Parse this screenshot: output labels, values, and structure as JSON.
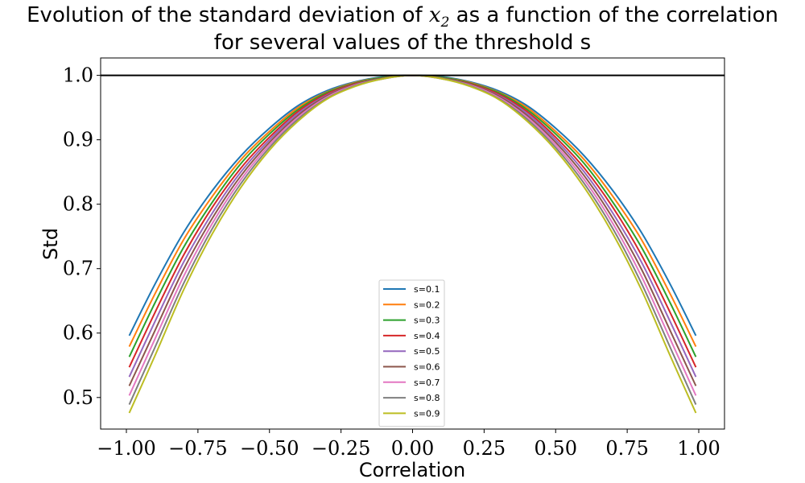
{
  "title": {
    "line1_prefix": "Evolution of the standard deviation of ",
    "line1_var": "x",
    "line1_sub": "2",
    "line1_suffix": " as a function of the correlation",
    "line2": "for several values of the threshold s"
  },
  "chart_data": {
    "type": "line",
    "xlabel": "Correlation",
    "ylabel": "Std",
    "xlim": [
      -1.09,
      1.09
    ],
    "ylim": [
      0.451,
      1.027
    ],
    "x_ticks": [
      -1.0,
      -0.75,
      -0.5,
      -0.25,
      0.0,
      0.25,
      0.5,
      0.75,
      1.0
    ],
    "x_tick_labels": [
      "−1.00",
      "−0.75",
      "−0.50",
      "−0.25",
      "0.00",
      "0.25",
      "0.50",
      "0.75",
      "1.00"
    ],
    "y_ticks": [
      0.5,
      0.6,
      0.7,
      0.8,
      0.9,
      1.0
    ],
    "y_tick_labels": [
      "0.5",
      "0.6",
      "0.7",
      "0.8",
      "0.9",
      "1.0"
    ],
    "hline": {
      "y": 1.0,
      "color": "#000000"
    },
    "legend_position": "lower-center",
    "x": [
      -0.99,
      -0.9,
      -0.8,
      -0.7,
      -0.6,
      -0.5,
      -0.4,
      -0.3,
      -0.2,
      -0.1,
      0.0,
      0.1,
      0.2,
      0.3,
      0.4,
      0.5,
      0.6,
      0.7,
      0.8,
      0.9,
      0.99
    ],
    "series": [
      {
        "name": "s=0.1",
        "color": "#1f77b4",
        "values": [
          0.596,
          0.676,
          0.756,
          0.821,
          0.875,
          0.918,
          0.953,
          0.976,
          0.99,
          0.998,
          1.0,
          0.998,
          0.99,
          0.976,
          0.953,
          0.918,
          0.875,
          0.821,
          0.756,
          0.676,
          0.596
        ]
      },
      {
        "name": "s=0.2",
        "color": "#ff7f0e",
        "values": [
          0.579,
          0.661,
          0.745,
          0.812,
          0.869,
          0.913,
          0.95,
          0.974,
          0.989,
          0.997,
          1.0,
          0.997,
          0.989,
          0.974,
          0.95,
          0.913,
          0.869,
          0.812,
          0.745,
          0.661,
          0.579
        ]
      },
      {
        "name": "s=0.3",
        "color": "#2ca02c",
        "values": [
          0.563,
          0.647,
          0.733,
          0.803,
          0.863,
          0.909,
          0.947,
          0.973,
          0.988,
          0.997,
          1.0,
          0.997,
          0.988,
          0.973,
          0.947,
          0.909,
          0.863,
          0.803,
          0.733,
          0.647,
          0.563
        ]
      },
      {
        "name": "s=0.4",
        "color": "#d62728",
        "values": [
          0.547,
          0.632,
          0.721,
          0.795,
          0.856,
          0.904,
          0.944,
          0.971,
          0.987,
          0.996,
          1.0,
          0.996,
          0.987,
          0.971,
          0.944,
          0.904,
          0.856,
          0.795,
          0.721,
          0.632,
          0.547
        ]
      },
      {
        "name": "s=0.5",
        "color": "#9467bd",
        "values": [
          0.532,
          0.618,
          0.71,
          0.786,
          0.85,
          0.9,
          0.941,
          0.969,
          0.986,
          0.996,
          1.0,
          0.996,
          0.986,
          0.969,
          0.941,
          0.9,
          0.85,
          0.786,
          0.71,
          0.618,
          0.532
        ]
      },
      {
        "name": "s=0.6",
        "color": "#8c564b",
        "values": [
          0.518,
          0.604,
          0.699,
          0.778,
          0.844,
          0.896,
          0.938,
          0.968,
          0.986,
          0.996,
          1.0,
          0.996,
          0.986,
          0.968,
          0.938,
          0.896,
          0.844,
          0.778,
          0.699,
          0.604,
          0.518
        ]
      },
      {
        "name": "s=0.7",
        "color": "#e377c2",
        "values": [
          0.503,
          0.591,
          0.688,
          0.77,
          0.838,
          0.892,
          0.935,
          0.966,
          0.985,
          0.995,
          1.0,
          0.995,
          0.985,
          0.966,
          0.935,
          0.892,
          0.838,
          0.77,
          0.688,
          0.591,
          0.503
        ]
      },
      {
        "name": "s=0.8",
        "color": "#7f7f7f",
        "values": [
          0.489,
          0.578,
          0.677,
          0.762,
          0.832,
          0.888,
          0.932,
          0.964,
          0.984,
          0.995,
          1.0,
          0.995,
          0.984,
          0.964,
          0.932,
          0.888,
          0.832,
          0.762,
          0.677,
          0.578,
          0.489
        ]
      },
      {
        "name": "s=0.9",
        "color": "#bcbd22",
        "values": [
          0.476,
          0.565,
          0.667,
          0.754,
          0.826,
          0.884,
          0.929,
          0.963,
          0.983,
          0.995,
          1.0,
          0.995,
          0.983,
          0.963,
          0.929,
          0.884,
          0.826,
          0.754,
          0.667,
          0.565,
          0.476
        ]
      }
    ]
  }
}
